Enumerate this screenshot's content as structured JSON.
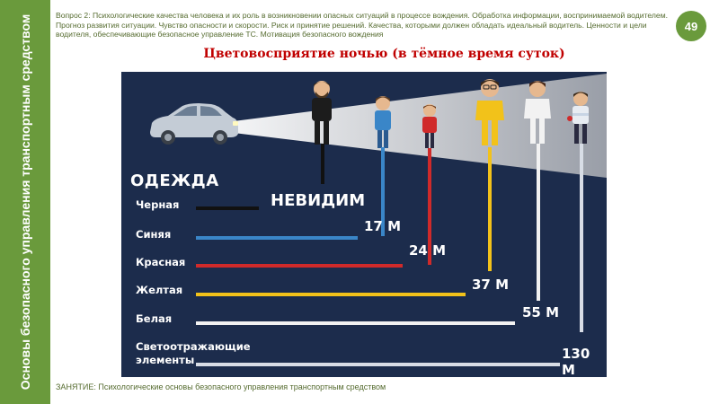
{
  "sidebar": {
    "text": "Основы безопасного управления транспортным средством"
  },
  "header": {
    "question": "Вопрос 2: Психологические качества человека и их роль в возникновении опасных ситуаций в процессе вождения. Обработка информации, воспринимаемой водителем. Прогноз развития ситуации. Чувство опасности и скорости. Риск и принятие решений. Качества, которыми должен обладать идеальный водитель. Ценности и цели водителя, обеспечивающие безопасное управление ТС. Мотивация безопасного вождения"
  },
  "page_number": "49",
  "slide_title": "Цветовосприятие ночью (в тёмное время суток)",
  "infographic": {
    "clothes_title": "ОДЕЖДА",
    "invisible_label": "НЕВИДИМ",
    "rows": [
      {
        "label": "Черная",
        "distance": "",
        "color": "#111111"
      },
      {
        "label": "Синяя",
        "distance": "17 М",
        "color": "#3a86c8"
      },
      {
        "label": "Красная",
        "distance": "24 М",
        "color": "#d02a2a"
      },
      {
        "label": "Желтая",
        "distance": "37 М",
        "color": "#f2c21a"
      },
      {
        "label": "Белая",
        "distance": "55 М",
        "color": "#f2f2f2"
      },
      {
        "label": "Светоотражающие элементы",
        "distance": "130 М",
        "color": "#d8dde6"
      }
    ]
  },
  "footer": "ЗАНЯТИЕ: Психологические основы безопасного управления транспортным средством",
  "colors": {
    "accent_green": "#6a9a3c",
    "title_red": "#c00000",
    "infographic_bg": "#1c2c4c"
  }
}
